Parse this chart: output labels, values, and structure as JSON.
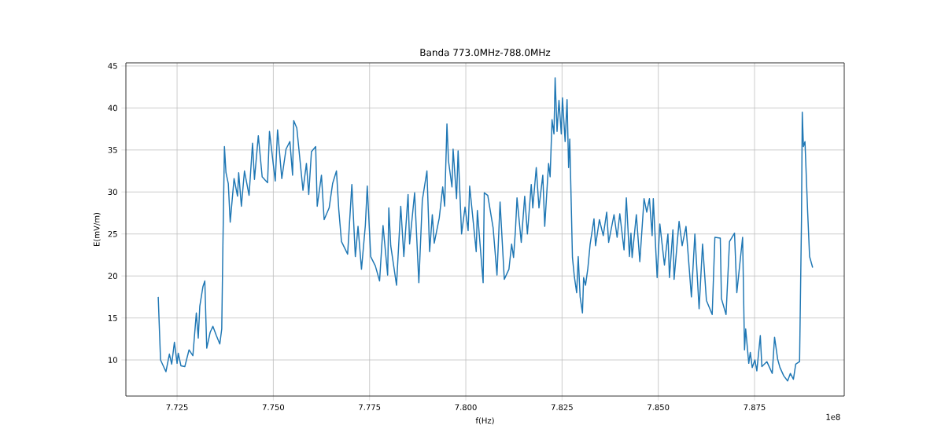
{
  "chart_data": {
    "type": "line",
    "title": "Banda 773.0MHz-788.0MHz",
    "xlabel": "f(Hz)",
    "ylabel": "E(mV/m)",
    "annotations": [
      "1e8"
    ],
    "color": "#1f77b4",
    "grid": true,
    "xlim": [
      7.7117,
      7.8983
    ],
    "ylim": [
      5.7,
      45.37
    ],
    "xticks": [
      7.725,
      {
        "value": 7.75,
        "label": "7.750"
      },
      7.775,
      {
        "value": 7.8,
        "label": "7.800"
      },
      7.825,
      {
        "value": 7.85,
        "label": "7.850"
      },
      7.875
    ],
    "yticks": [
      10,
      15,
      20,
      25,
      30,
      35,
      40,
      45
    ],
    "x": [
      7.7201,
      7.7207,
      7.7221,
      7.723,
      7.7236,
      7.7243,
      7.725,
      7.7253,
      7.726,
      7.727,
      7.7281,
      7.7291,
      7.73,
      7.7305,
      7.7309,
      7.7317,
      7.7322,
      7.7327,
      7.7336,
      7.7343,
      7.7352,
      7.7361,
      7.7366,
      7.7369,
      7.7373,
      7.7377,
      7.7383,
      7.7388,
      7.7398,
      7.7407,
      7.741,
      7.7417,
      7.7425,
      7.7437,
      7.7446,
      7.7451,
      7.7461,
      7.7471,
      7.7485,
      7.749,
      7.7505,
      7.7511,
      7.7522,
      7.7533,
      7.7543,
      7.755,
      7.7553,
      7.7561,
      7.7577,
      7.7586,
      7.7592,
      7.7599,
      7.761,
      7.7614,
      7.7625,
      7.7632,
      7.7645,
      7.7654,
      7.7664,
      7.767,
      7.7677,
      7.7693,
      7.7704,
      7.7713,
      7.772,
      7.7729,
      7.7739,
      7.7744,
      7.7753,
      7.7765,
      7.7776,
      7.7785,
      7.7797,
      7.78,
      7.7805,
      7.782,
      7.7831,
      7.7839,
      7.785,
      7.7854,
      7.7867,
      7.7878,
      7.7887,
      7.7899,
      7.7906,
      7.7913,
      7.7918,
      7.7931,
      7.794,
      7.7945,
      7.7951,
      7.7955,
      7.7964,
      7.7967,
      7.7976,
      7.798,
      7.7989,
      7.7998,
      7.8006,
      7.801,
      7.8027,
      7.803,
      7.8045,
      7.8048,
      7.8057,
      7.8071,
      7.8081,
      7.8089,
      7.81,
      7.8112,
      7.8119,
      7.8124,
      7.8129,
      7.8133,
      7.8144,
      7.8153,
      7.816,
      7.817,
      7.8174,
      7.8183,
      7.819,
      7.82,
      7.8205,
      7.8215,
      7.8219,
      7.8224,
      7.8229,
      7.8232,
      7.8237,
      7.8242,
      7.8248,
      7.8251,
      7.8258,
      7.8263,
      7.8267,
      7.827,
      7.8277,
      7.8282,
      7.8288,
      7.8292,
      7.8297,
      7.8303,
      7.8306,
      7.8311,
      7.8317,
      7.8323,
      7.8333,
      7.8337,
      7.8347,
      7.8357,
      7.8366,
      7.8371,
      7.8385,
      7.8393,
      7.84,
      7.8411,
      7.8417,
      7.8425,
      7.8429,
      7.8432,
      7.8443,
      7.8452,
      7.8463,
      7.847,
      7.8477,
      7.8484,
      7.8487,
      7.8497,
      7.8504,
      7.8516,
      7.8525,
      7.8529,
      7.8538,
      7.8541,
      7.8554,
      7.8562,
      7.8572,
      7.8586,
      7.8595,
      7.8606,
      7.8615,
      7.8625,
      7.864,
      7.8647,
      7.8661,
      7.8664,
      7.8676,
      7.8685,
      7.8698,
      7.8704,
      7.8719,
      7.8724,
      7.8727,
      7.8735,
      7.8739,
      7.8744,
      7.8751,
      7.8756,
      7.8765,
      7.8769,
      7.8782,
      7.8796,
      7.8802,
      7.881,
      7.8816,
      7.8826,
      7.8836,
      7.8843,
      7.8851,
      7.8857,
      7.8867,
      7.8872,
      7.8874,
      7.8877,
      7.8881,
      7.8888,
      7.8893,
      7.8901
    ],
    "values": [
      17.5,
      10.0,
      8.6,
      10.7,
      9.5,
      12.1,
      9.6,
      10.8,
      9.3,
      9.2,
      11.2,
      10.5,
      15.6,
      12.6,
      16.4,
      18.7,
      19.4,
      11.4,
      13.3,
      14.0,
      12.9,
      11.9,
      13.7,
      23.6,
      35.4,
      32.3,
      31.0,
      26.4,
      31.6,
      29.5,
      32.3,
      28.3,
      32.5,
      29.6,
      35.8,
      31.5,
      36.7,
      31.8,
      31.1,
      37.2,
      31.3,
      37.4,
      31.6,
      35.1,
      36.0,
      32.0,
      38.5,
      37.6,
      30.2,
      33.4,
      29.7,
      34.8,
      35.4,
      28.3,
      32.0,
      26.7,
      28.1,
      31.0,
      32.5,
      27.9,
      24.1,
      22.6,
      30.9,
      22.3,
      25.9,
      20.8,
      26.0,
      30.7,
      22.3,
      21.2,
      19.4,
      26.0,
      20.1,
      28.1,
      23.6,
      18.9,
      28.3,
      22.3,
      29.7,
      23.8,
      29.9,
      19.2,
      29.0,
      32.5,
      22.9,
      27.3,
      23.9,
      26.9,
      30.6,
      28.3,
      38.1,
      33.7,
      30.6,
      35.1,
      29.2,
      34.9,
      25.0,
      28.2,
      25.4,
      30.7,
      22.9,
      27.8,
      19.2,
      29.9,
      29.6,
      25.7,
      20.1,
      28.8,
      19.6,
      20.8,
      23.8,
      22.2,
      25.5,
      29.3,
      24.0,
      29.5,
      25.0,
      30.9,
      28.1,
      32.9,
      28.1,
      32.0,
      25.9,
      33.4,
      31.8,
      38.6,
      36.9,
      43.6,
      37.2,
      40.9,
      36.9,
      41.2,
      36.0,
      41.0,
      32.9,
      36.3,
      22.2,
      19.9,
      18.0,
      22.3,
      17.5,
      15.6,
      19.8,
      18.9,
      20.9,
      23.8,
      26.8,
      23.6,
      26.7,
      24.8,
      27.6,
      24.0,
      27.3,
      24.6,
      27.4,
      23.1,
      29.3,
      22.3,
      25.1,
      22.2,
      27.3,
      21.7,
      29.2,
      27.6,
      29.2,
      24.8,
      29.2,
      19.8,
      26.2,
      21.3,
      25.0,
      19.8,
      25.5,
      19.6,
      26.5,
      23.6,
      25.9,
      17.5,
      25.0,
      16.1,
      23.8,
      17.1,
      15.4,
      24.6,
      24.5,
      17.3,
      15.4,
      24.1,
      25.1,
      18.0,
      24.6,
      11.2,
      13.7,
      9.6,
      10.9,
      9.1,
      10.0,
      8.7,
      12.9,
      9.2,
      9.8,
      8.4,
      12.7,
      10.1,
      9.1,
      8.1,
      7.5,
      8.4,
      7.7,
      9.5,
      9.8,
      26.7,
      39.5,
      35.4,
      36.0,
      27.6,
      22.3,
      21.0
    ]
  }
}
